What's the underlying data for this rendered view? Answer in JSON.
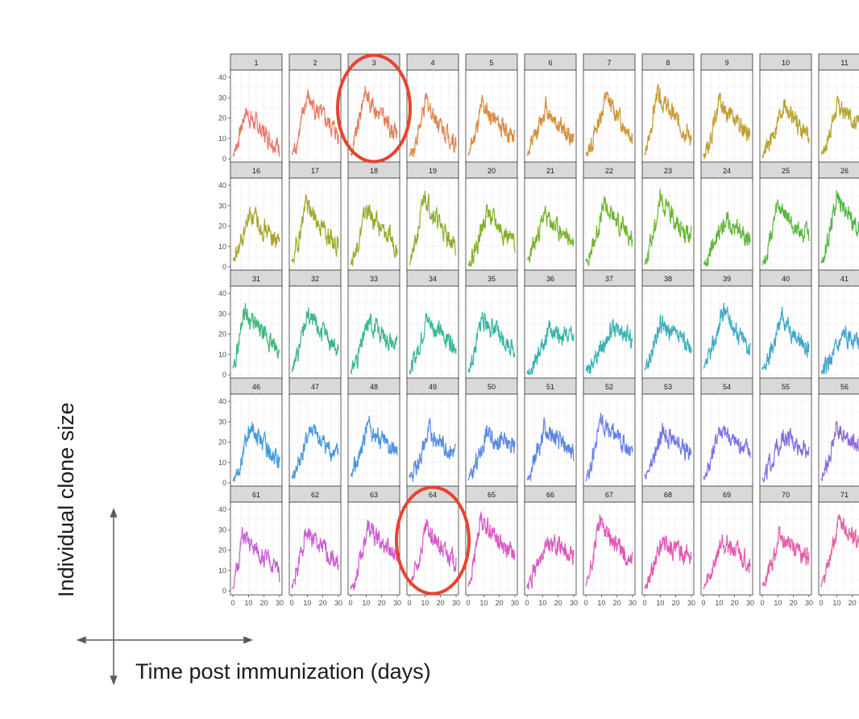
{
  "chart_data": {
    "type": "line",
    "layout": "facet-grid",
    "ylabel": "Individual clone size",
    "xlabel": "Time post immunization (days)",
    "ylim": [
      0,
      40
    ],
    "xlim": [
      0,
      30
    ],
    "y_ticks": [
      0,
      10,
      20,
      30,
      40
    ],
    "x_ticks": [
      0,
      10,
      20,
      30
    ],
    "x_ticks_partial": [
      0,
      10,
      20
    ],
    "grid": true,
    "highlighted_panels": [
      "3",
      "64"
    ],
    "highlight_color": "#e8442e",
    "panels": [
      {
        "id": "1",
        "color": "#E8766C",
        "peak": 24,
        "peak_day": 8,
        "end": 6
      },
      {
        "id": "2",
        "color": "#E57B62",
        "peak": 31,
        "peak_day": 10,
        "end": 12
      },
      {
        "id": "3",
        "color": "#E3805A",
        "peak": 34,
        "peak_day": 9,
        "end": 12
      },
      {
        "id": "4",
        "color": "#E0854F",
        "peak": 29,
        "peak_day": 11,
        "end": 7
      },
      {
        "id": "5",
        "color": "#DC8A46",
        "peak": 27,
        "peak_day": 9,
        "end": 10
      },
      {
        "id": "6",
        "color": "#D58F3D",
        "peak": 26,
        "peak_day": 12,
        "end": 9
      },
      {
        "id": "7",
        "color": "#CE9538",
        "peak": 31,
        "peak_day": 13,
        "end": 12
      },
      {
        "id": "8",
        "color": "#C79A33",
        "peak": 33,
        "peak_day": 8,
        "end": 11
      },
      {
        "id": "9",
        "color": "#C19E30",
        "peak": 28,
        "peak_day": 10,
        "end": 12
      },
      {
        "id": "10",
        "color": "#BAA12E",
        "peak": 28,
        "peak_day": 14,
        "end": 11
      },
      {
        "id": "11",
        "color": "#B4A42C",
        "peak": 26,
        "peak_day": 10,
        "end": 16
      },
      {
        "id": "16",
        "color": "#A8A62A",
        "peak": 27,
        "peak_day": 11,
        "end": 12
      },
      {
        "id": "17",
        "color": "#9FA92A",
        "peak": 32,
        "peak_day": 9,
        "end": 10
      },
      {
        "id": "18",
        "color": "#96AB2A",
        "peak": 29,
        "peak_day": 10,
        "end": 10
      },
      {
        "id": "19",
        "color": "#8CAE2B",
        "peak": 36,
        "peak_day": 10,
        "end": 9
      },
      {
        "id": "20",
        "color": "#84B02C",
        "peak": 28,
        "peak_day": 12,
        "end": 11
      },
      {
        "id": "21",
        "color": "#7BB22D",
        "peak": 26,
        "peak_day": 11,
        "end": 12
      },
      {
        "id": "22",
        "color": "#72B430",
        "peak": 31,
        "peak_day": 12,
        "end": 14
      },
      {
        "id": "23",
        "color": "#69B634",
        "peak": 34,
        "peak_day": 10,
        "end": 14
      },
      {
        "id": "24",
        "color": "#60B739",
        "peak": 24,
        "peak_day": 14,
        "end": 14
      },
      {
        "id": "25",
        "color": "#57B83F",
        "peak": 30,
        "peak_day": 10,
        "end": 14
      },
      {
        "id": "26",
        "color": "#4FB946",
        "peak": 36,
        "peak_day": 10,
        "end": 14
      },
      {
        "id": "31",
        "color": "#3DB77A",
        "peak": 33,
        "peak_day": 7,
        "end": 11
      },
      {
        "id": "32",
        "color": "#3BB784",
        "peak": 30,
        "peak_day": 10,
        "end": 13
      },
      {
        "id": "33",
        "color": "#3AB78F",
        "peak": 27,
        "peak_day": 12,
        "end": 14
      },
      {
        "id": "34",
        "color": "#39B799",
        "peak": 28,
        "peak_day": 11,
        "end": 15
      },
      {
        "id": "35",
        "color": "#38B6A2",
        "peak": 29,
        "peak_day": 9,
        "end": 13
      },
      {
        "id": "36",
        "color": "#38B4AB",
        "peak": 22,
        "peak_day": 14,
        "end": 18
      },
      {
        "id": "37",
        "color": "#39B2B3",
        "peak": 22,
        "peak_day": 16,
        "end": 18
      },
      {
        "id": "38",
        "color": "#3BAFBB",
        "peak": 25,
        "peak_day": 10,
        "end": 14
      },
      {
        "id": "39",
        "color": "#3DACC2",
        "peak": 33,
        "peak_day": 13,
        "end": 13
      },
      {
        "id": "40",
        "color": "#3FA8C8",
        "peak": 30,
        "peak_day": 13,
        "end": 12
      },
      {
        "id": "41",
        "color": "#41A4CD",
        "peak": 20,
        "peak_day": 16,
        "end": 16
      },
      {
        "id": "46",
        "color": "#459DDB",
        "peak": 28,
        "peak_day": 11,
        "end": 11
      },
      {
        "id": "47",
        "color": "#4998DE",
        "peak": 27,
        "peak_day": 12,
        "end": 13
      },
      {
        "id": "48",
        "color": "#4E93E0",
        "peak": 29,
        "peak_day": 11,
        "end": 15
      },
      {
        "id": "49",
        "color": "#548EE2",
        "peak": 26,
        "peak_day": 13,
        "end": 14
      },
      {
        "id": "50",
        "color": "#5A89E3",
        "peak": 25,
        "peak_day": 12,
        "end": 17
      },
      {
        "id": "51",
        "color": "#6184E4",
        "peak": 27,
        "peak_day": 11,
        "end": 15
      },
      {
        "id": "52",
        "color": "#697FE4",
        "peak": 31,
        "peak_day": 9,
        "end": 16
      },
      {
        "id": "53",
        "color": "#7279E3",
        "peak": 26,
        "peak_day": 12,
        "end": 15
      },
      {
        "id": "54",
        "color": "#7B74E2",
        "peak": 27,
        "peak_day": 10,
        "end": 16
      },
      {
        "id": "55",
        "color": "#856FE0",
        "peak": 24,
        "peak_day": 13,
        "end": 16
      },
      {
        "id": "56",
        "color": "#8F6ADD",
        "peak": 27,
        "peak_day": 10,
        "end": 16
      },
      {
        "id": "61",
        "color": "#C85FD6",
        "peak": 27,
        "peak_day": 6,
        "end": 10
      },
      {
        "id": "62",
        "color": "#CD5DD2",
        "peak": 30,
        "peak_day": 9,
        "end": 14
      },
      {
        "id": "63",
        "color": "#D25BCE",
        "peak": 31,
        "peak_day": 11,
        "end": 18
      },
      {
        "id": "64",
        "color": "#D65ACA",
        "peak": 31,
        "peak_day": 11,
        "end": 14
      },
      {
        "id": "65",
        "color": "#DA59C5",
        "peak": 37,
        "peak_day": 8,
        "end": 17
      },
      {
        "id": "66",
        "color": "#DD59C0",
        "peak": 25,
        "peak_day": 12,
        "end": 17
      },
      {
        "id": "67",
        "color": "#E059BA",
        "peak": 36,
        "peak_day": 9,
        "end": 13
      },
      {
        "id": "68",
        "color": "#E25AB4",
        "peak": 24,
        "peak_day": 11,
        "end": 17
      },
      {
        "id": "69",
        "color": "#E45CAE",
        "peak": 26,
        "peak_day": 12,
        "end": 14
      },
      {
        "id": "70",
        "color": "#E55FA8",
        "peak": 27,
        "peak_day": 11,
        "end": 16
      },
      {
        "id": "71",
        "color": "#E662A2",
        "peak": 36,
        "peak_day": 12,
        "end": 18
      }
    ]
  }
}
